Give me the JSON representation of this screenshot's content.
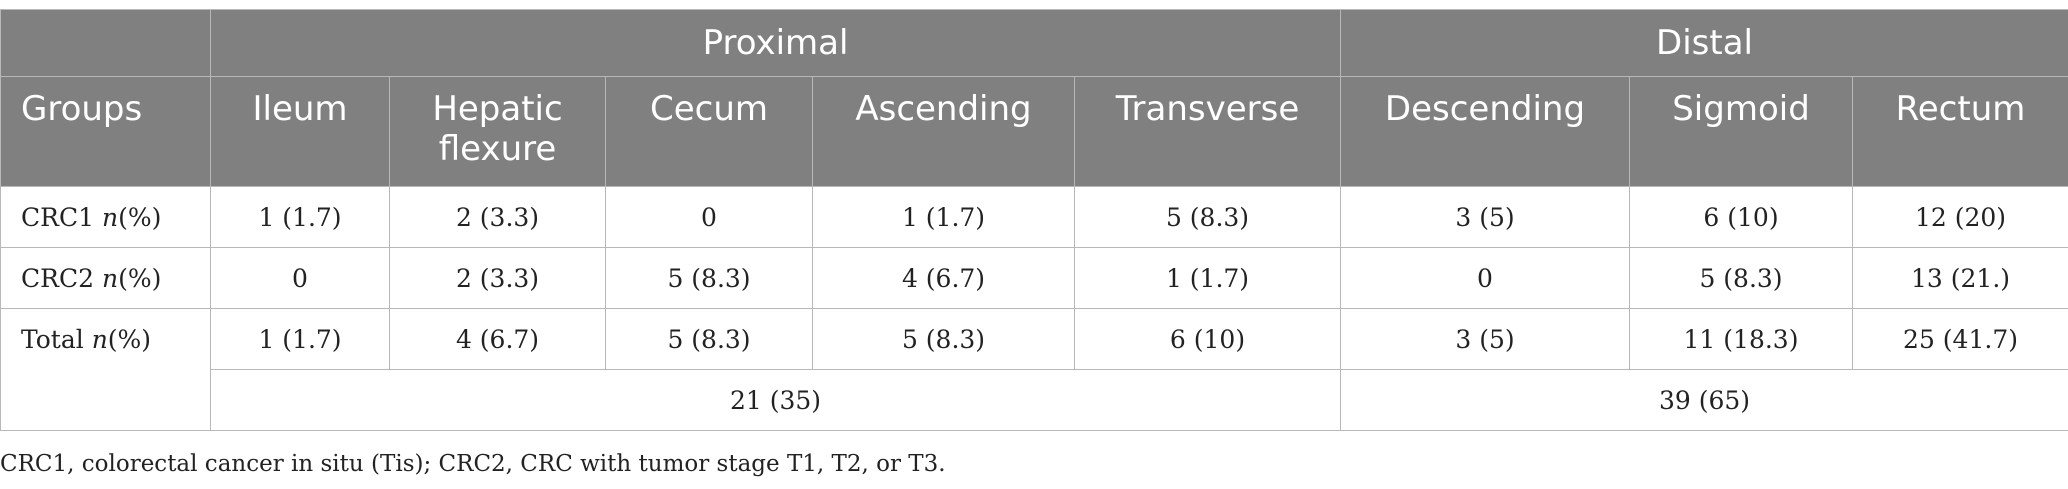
{
  "table": {
    "group_headers": {
      "proximal": "Proximal",
      "distal": "Distal"
    },
    "columns": [
      "Groups",
      "Ileum",
      "Hepatic flexure",
      "Cecum",
      "Ascending",
      "Transverse",
      "Descending",
      "Sigmoid",
      "Rectum"
    ],
    "rows": [
      {
        "label": "CRC1",
        "unit_italic": "n",
        "unit_rest": "(%)",
        "cells": [
          "1 (1.7)",
          "2 (3.3)",
          "0",
          "1 (1.7)",
          "5 (8.3)",
          "3 (5)",
          "6 (10)",
          "12 (20)"
        ]
      },
      {
        "label": "CRC2",
        "unit_italic": "n",
        "unit_rest": "(%)",
        "cells": [
          "0",
          "2 (3.3)",
          "5 (8.3)",
          "4 (6.7)",
          "1 (1.7)",
          "0",
          "5 (8.3)",
          "13 (21.)"
        ]
      },
      {
        "label": "Total",
        "unit_italic": "n",
        "unit_rest": "(%)",
        "cells": [
          "1 (1.7)",
          "4 (6.7)",
          "5 (8.3)",
          "5 (8.3)",
          "6 (10)",
          "3 (5)",
          "11 (18.3)",
          "25 (41.7)"
        ]
      }
    ],
    "subtotals": {
      "proximal": "21 (35)",
      "distal": "39 (65)"
    }
  },
  "footnote": "CRC1, colorectal cancer in situ (Tis); CRC2, CRC with tumor stage T1, T2, or T3."
}
